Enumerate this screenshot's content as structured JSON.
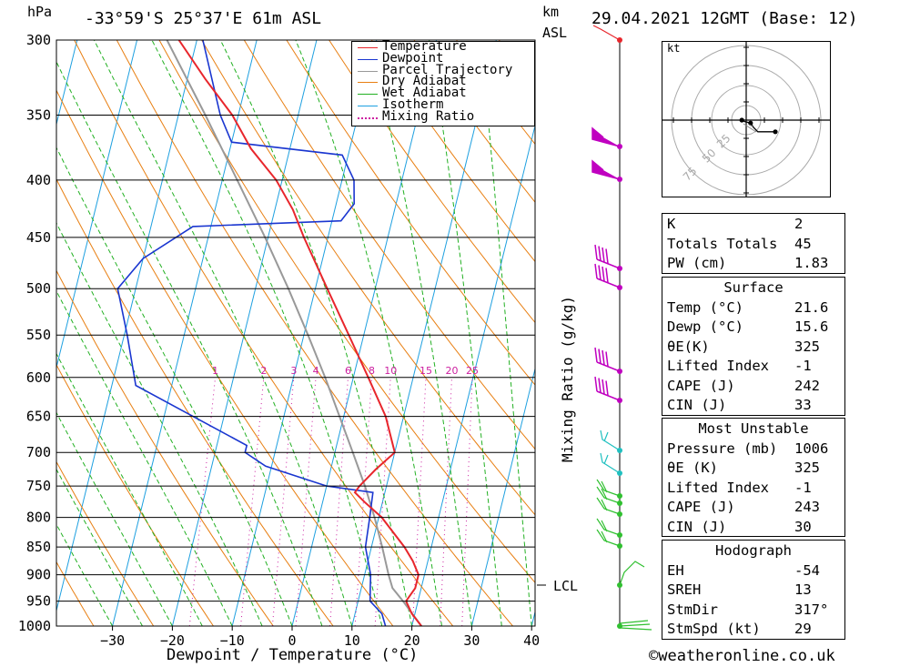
{
  "header": {
    "pressure_unit": "hPa",
    "location": "-33°59'S  25°37'E  61m  ASL",
    "height_unit": "km",
    "height_unit_sub": "ASL",
    "datetime": "29.04.2021  12GMT  (Base: 12)"
  },
  "legend": [
    {
      "label": "Temperature",
      "color": "#e8262c",
      "dash": ""
    },
    {
      "label": "Dewpoint",
      "color": "#1a36d0",
      "dash": ""
    },
    {
      "label": "Parcel Trajectory",
      "color": "#999999",
      "dash": ""
    },
    {
      "label": "Dry Adiabat",
      "color": "#e87f12",
      "dash": ""
    },
    {
      "label": "Wet Adiabat",
      "color": "#22b022",
      "dash": ""
    },
    {
      "label": "Isotherm",
      "color": "#1ea0e0",
      "dash": ""
    },
    {
      "label": "Mixing Ratio",
      "color": "#cc1fa0",
      "dash": "dots"
    }
  ],
  "axes": {
    "xlabel": "Dewpoint / Temperature (°C)",
    "mixing_label": "Mixing Ratio (g/kg)",
    "lcl_label": "LCL",
    "credit": "©weatheronline.co.uk"
  },
  "chart_data": {
    "type": "line",
    "title": "-33°59'S  25°37'E  61m  ASL",
    "xlabel": "Dewpoint / Temperature (°C)",
    "ylabel": "hPa",
    "xlim": [
      -40,
      40
    ],
    "ylim": [
      1000,
      300
    ],
    "y_scale": "log",
    "x_ticks": [
      -30,
      -20,
      -10,
      0,
      10,
      20,
      30,
      40
    ],
    "pressure_ticks": [
      300,
      350,
      400,
      450,
      500,
      550,
      600,
      650,
      700,
      750,
      800,
      850,
      900,
      950,
      1000
    ],
    "mixing_ratio_ticks": [
      1,
      2,
      3,
      4,
      6,
      8,
      10,
      15,
      20,
      25
    ],
    "lcl_pressure": 925,
    "series": [
      {
        "name": "Temperature",
        "color": "#e8262c",
        "points": [
          [
            1000,
            21.6
          ],
          [
            975,
            19.5
          ],
          [
            950,
            18.0
          ],
          [
            925,
            19.0
          ],
          [
            900,
            19.0
          ],
          [
            875,
            17.5
          ],
          [
            850,
            15.5
          ],
          [
            800,
            10.5
          ],
          [
            775,
            7.0
          ],
          [
            760,
            5.0
          ],
          [
            750,
            5.5
          ],
          [
            725,
            7.5
          ],
          [
            700,
            10.0
          ],
          [
            650,
            7.0
          ],
          [
            600,
            2.5
          ],
          [
            550,
            -2.5
          ],
          [
            500,
            -8.0
          ],
          [
            450,
            -14.0
          ],
          [
            425,
            -17.0
          ],
          [
            400,
            -21.0
          ],
          [
            375,
            -26.5
          ],
          [
            350,
            -31.0
          ],
          [
            325,
            -37.0
          ],
          [
            300,
            -43.0
          ]
        ]
      },
      {
        "name": "Dewpoint",
        "color": "#1a36d0",
        "points": [
          [
            1000,
            15.6
          ],
          [
            975,
            14.5
          ],
          [
            950,
            12.0
          ],
          [
            925,
            11.5
          ],
          [
            900,
            11.0
          ],
          [
            850,
            9.0
          ],
          [
            800,
            8.5
          ],
          [
            760,
            8.0
          ],
          [
            750,
            0.0
          ],
          [
            720,
            -11.0
          ],
          [
            700,
            -15.0
          ],
          [
            690,
            -15.0
          ],
          [
            610,
            -36.0
          ],
          [
            550,
            -39.5
          ],
          [
            500,
            -43.0
          ],
          [
            470,
            -40.0
          ],
          [
            440,
            -33.0
          ],
          [
            435,
            -8.5
          ],
          [
            420,
            -7.0
          ],
          [
            400,
            -8.0
          ],
          [
            380,
            -11.0
          ],
          [
            370,
            -30.0
          ],
          [
            350,
            -33.0
          ],
          [
            300,
            -39.0
          ]
        ]
      },
      {
        "name": "Parcel Trajectory",
        "color": "#999999",
        "points": [
          [
            1000,
            21.6
          ],
          [
            950,
            17.5
          ],
          [
            925,
            15.2
          ],
          [
            900,
            14.0
          ],
          [
            850,
            11.8
          ],
          [
            800,
            9.3
          ],
          [
            750,
            6.4
          ],
          [
            700,
            3.0
          ],
          [
            650,
            -0.7
          ],
          [
            600,
            -4.7
          ],
          [
            550,
            -9.3
          ],
          [
            500,
            -14.5
          ],
          [
            450,
            -20.5
          ],
          [
            400,
            -27.5
          ],
          [
            350,
            -35.5
          ],
          [
            300,
            -45.0
          ]
        ]
      }
    ]
  },
  "wind_profile": {
    "barb_color_upper": "#c000c0",
    "barb_color_mid": "#20c0c0",
    "barb_color_low": "#30c030",
    "levels_km": [
      12.0,
      11.0,
      10.0,
      9.5,
      9.0,
      8.5,
      7.0,
      6.5,
      5.5,
      5.0,
      4.5,
      4.0,
      3.5,
      3.0,
      2.5,
      1.5,
      0.0
    ],
    "tick_label_lcl": "LCL"
  },
  "hodograph": {
    "unit": "kt",
    "ring_labels": [
      "25",
      "50",
      "75"
    ],
    "trace_uv": [
      [
        -3,
        0
      ],
      [
        -1,
        -1
      ],
      [
        3,
        -2
      ],
      [
        5,
        -5
      ],
      [
        8,
        -8
      ],
      [
        12,
        -8
      ],
      [
        20,
        -8
      ]
    ]
  },
  "indices": [
    {
      "key": "K",
      "value": "2"
    },
    {
      "key": "Totals Totals",
      "value": "45"
    },
    {
      "key": "PW (cm)",
      "value": "1.83"
    }
  ],
  "surface": {
    "title": "Surface",
    "rows": [
      {
        "key": "Temp (°C)",
        "value": "21.6"
      },
      {
        "key": "Dewp (°C)",
        "value": "15.6"
      },
      {
        "key": "θE(K)",
        "value": "325"
      },
      {
        "key": "Lifted Index",
        "value": "-1"
      },
      {
        "key": "CAPE (J)",
        "value": "242"
      },
      {
        "key": "CIN (J)",
        "value": "33"
      }
    ]
  },
  "most_unstable": {
    "title": "Most Unstable",
    "rows": [
      {
        "key": "Pressure (mb)",
        "value": "1006"
      },
      {
        "key": "θE (K)",
        "value": "325"
      },
      {
        "key": "Lifted Index",
        "value": "-1"
      },
      {
        "key": "CAPE (J)",
        "value": "243"
      },
      {
        "key": "CIN (J)",
        "value": "30"
      }
    ]
  },
  "hodograph_stats": {
    "title": "Hodograph",
    "rows": [
      {
        "key": "EH",
        "value": "-54"
      },
      {
        "key": "SREH",
        "value": "13"
      },
      {
        "key": "StmDir",
        "value": "317°"
      },
      {
        "key": "StmSpd (kt)",
        "value": "29"
      }
    ]
  }
}
